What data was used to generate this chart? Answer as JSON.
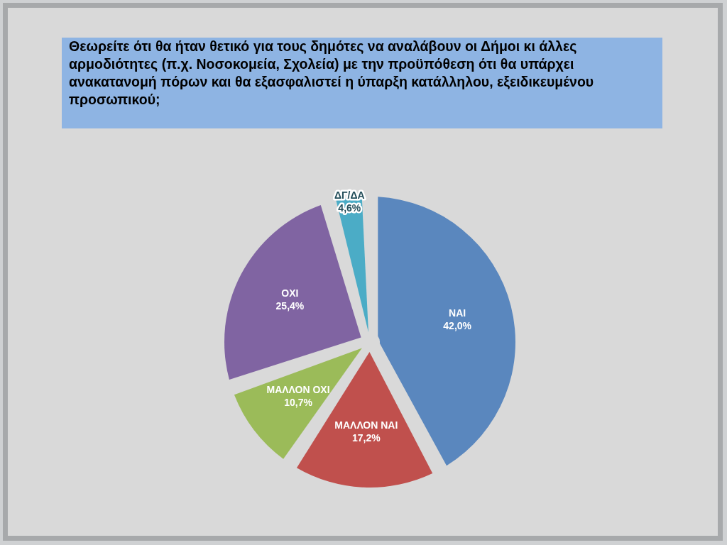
{
  "chart_data": {
    "type": "pie",
    "title": "Θεωρείτε ότι θα ήταν θετικό για τους δημότες να αναλάβουν οι Δήμοι κι άλλες αρμοδιότητες (π.χ. Νοσοκομεία, Σχολεία) με την προϋπόθεση ότι θα υπάρχει ανακατανομή πόρων και θα εξασφαλιστεί η ύπαρξη κατάλληλου, εξειδικευμένου προσωπικού;",
    "categories": [
      "ΝΑΙ",
      "ΜΑΛΛΟΝ ΝΑΙ",
      "ΜΑΛΛΟΝ ΟΧΙ",
      "ΟΧΙ",
      "ΔΓ/ΔΑ"
    ],
    "values": [
      42.0,
      17.2,
      10.7,
      25.4,
      4.6
    ],
    "colors": [
      "#5a87be",
      "#c0504d",
      "#9bbb59",
      "#8064a2",
      "#4bacc6"
    ],
    "value_labels": [
      "42,0%",
      "17,2%",
      "10,7%",
      "25,4%",
      "4,6%"
    ]
  }
}
